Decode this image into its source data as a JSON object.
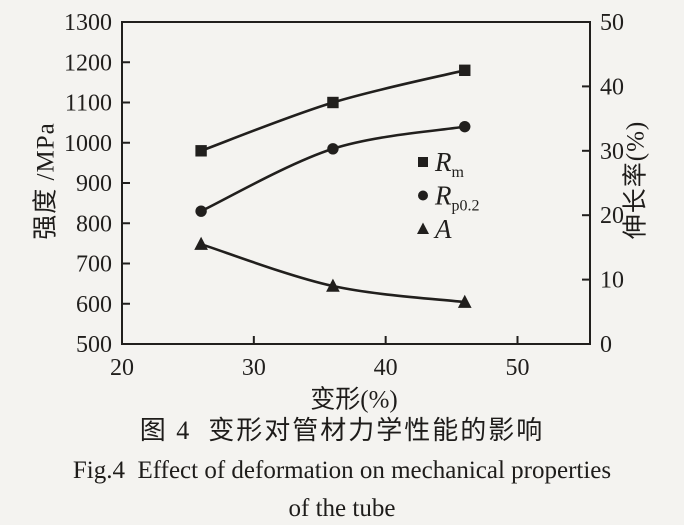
{
  "colors": {
    "ink": "#211f1d",
    "background": "#f4f3f0"
  },
  "caption": {
    "line1": "图 4  变形对管材力学性能的影响",
    "line2": "Fig.4  Effect of deformation on mechanical properties",
    "line3": "of the tube"
  },
  "chart_data": {
    "type": "line",
    "title": "",
    "xlabel": "变形(%)",
    "ylabel_left": "强度 /MPa",
    "ylabel_right": "伸长率(%)",
    "x": [
      26,
      36,
      46
    ],
    "x_range": [
      20,
      55.5
    ],
    "x_ticks": [
      20,
      30,
      40,
      50
    ],
    "y_left_range": [
      500,
      1300
    ],
    "y_left_ticks": [
      500,
      600,
      700,
      800,
      900,
      1000,
      1100,
      1200,
      1300
    ],
    "y_right_range": [
      0,
      50
    ],
    "y_right_ticks": [
      0,
      10,
      20,
      30,
      40,
      50
    ],
    "grid": false,
    "legend_position": "middle-right",
    "series": [
      {
        "name": "Rm",
        "label_main": "R",
        "label_sub": "m",
        "marker": "square",
        "axis": "left",
        "values": [
          980,
          1100,
          1180
        ]
      },
      {
        "name": "Rp0.2",
        "label_main": "R",
        "label_sub": "p0.2",
        "marker": "circle",
        "axis": "left",
        "values": [
          830,
          985,
          1040
        ]
      },
      {
        "name": "A",
        "label_main": "A",
        "label_sub": "",
        "marker": "triangle",
        "axis": "right",
        "values": [
          15.5,
          9,
          6.5
        ]
      }
    ]
  }
}
